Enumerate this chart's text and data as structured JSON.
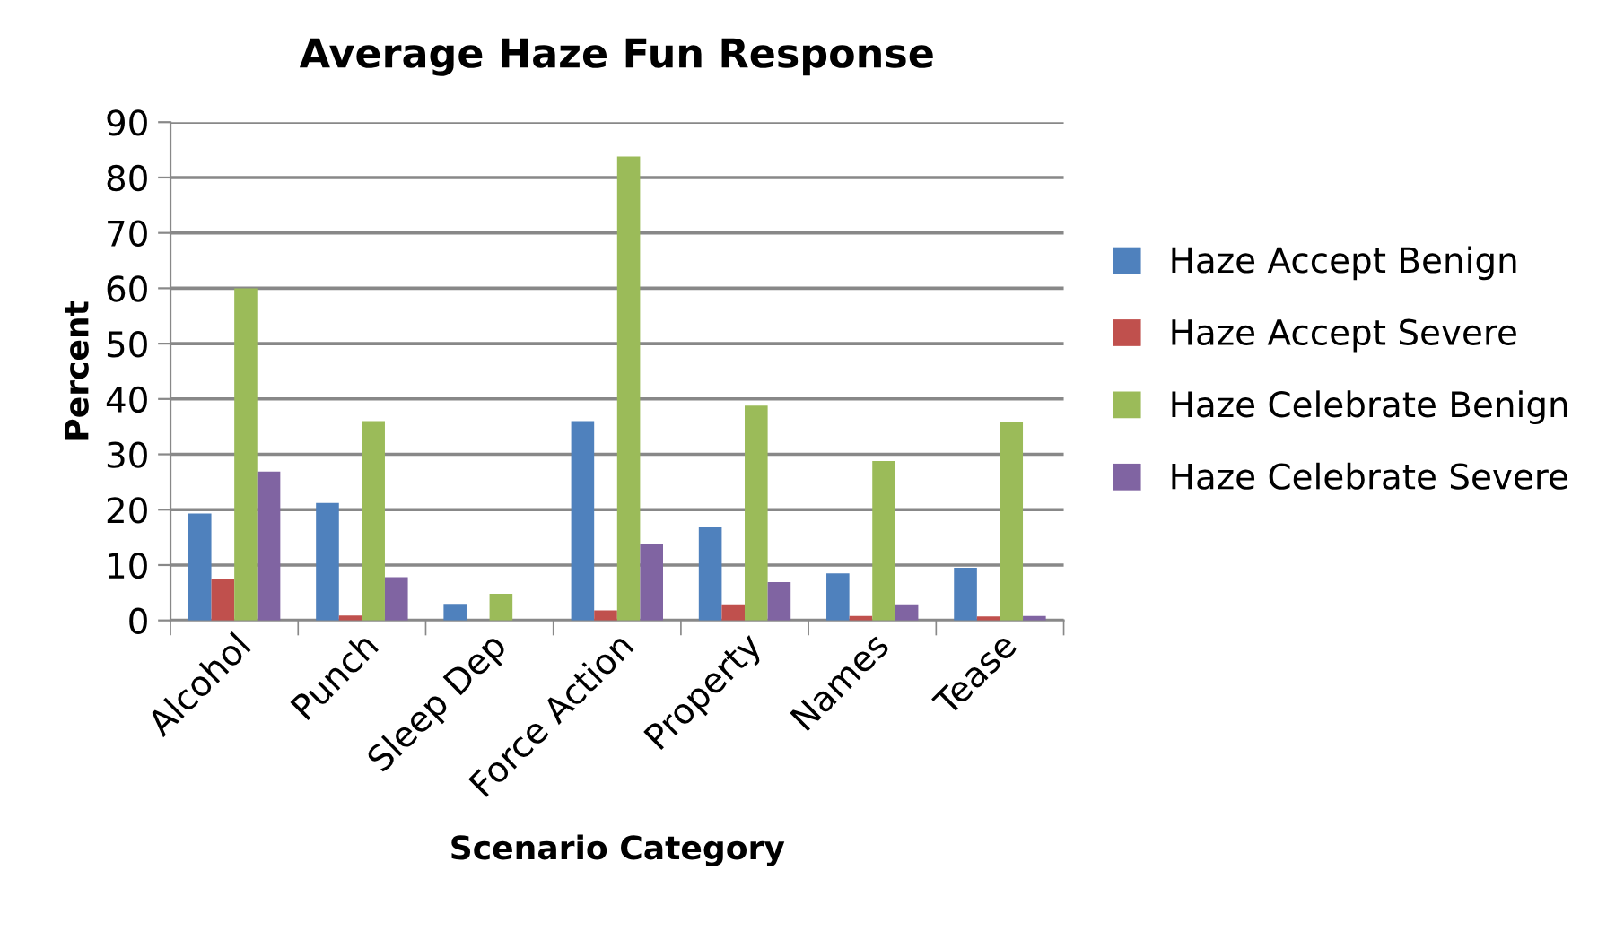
{
  "chart_data": {
    "type": "bar",
    "title": "Average Haze Fun Response",
    "xlabel": "Scenario Category",
    "ylabel": "Percent",
    "categories": [
      "Alcohol",
      "Punch",
      "Sleep Dep",
      "Force Action",
      "Property",
      "Names",
      "Tease"
    ],
    "series": [
      {
        "name": "Haze Accept Benign",
        "color": "#4f81bd",
        "values": [
          19.3,
          21.2,
          3,
          36,
          16.8,
          8.5,
          9.5
        ]
      },
      {
        "name": "Haze Accept Severe",
        "color": "#c0504d",
        "values": [
          7.5,
          0.9,
          0,
          1.8,
          2.9,
          0.8,
          0.7
        ]
      },
      {
        "name": "Haze Celebrate Benign",
        "color": "#9bbb59",
        "values": [
          60,
          36,
          4.8,
          83.8,
          38.8,
          28.8,
          35.8
        ]
      },
      {
        "name": "Haze Celebrate Severe",
        "color": "#8064a2",
        "values": [
          26.9,
          7.8,
          0,
          13.8,
          6.9,
          2.9,
          0.8
        ]
      }
    ],
    "ylim": [
      0,
      90
    ],
    "yticks": [
      0,
      10,
      20,
      30,
      40,
      50,
      60,
      70,
      80,
      90
    ],
    "grid": "y",
    "legend": "right"
  }
}
